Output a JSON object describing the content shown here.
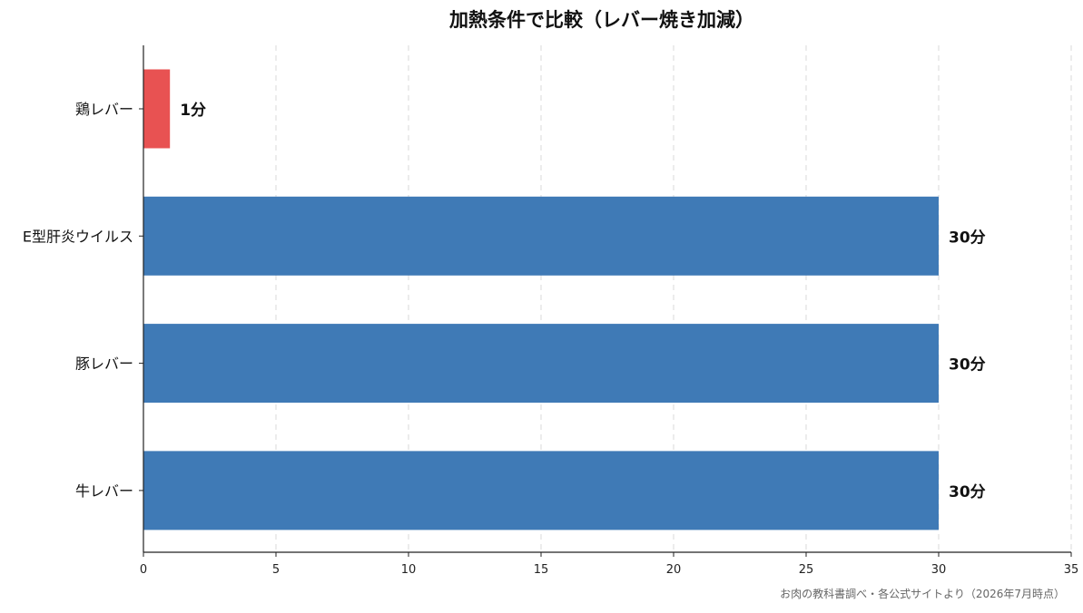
{
  "chart_data": {
    "type": "bar",
    "orientation": "horizontal",
    "title": "加熱条件で比較（レバー焼き加減）",
    "categories": [
      "鶏レバー",
      "E型肝炎ウイルス",
      "豚レバー",
      "牛レバー"
    ],
    "values": [
      1,
      30,
      30,
      30
    ],
    "value_labels": [
      "1分",
      "30分",
      "30分",
      "30分"
    ],
    "bar_colors": [
      "#e85252",
      "#3f7ab6",
      "#3f7ab6",
      "#3f7ab6"
    ],
    "xlim": [
      0,
      35
    ],
    "xticks": [
      0,
      5,
      10,
      15,
      20,
      25,
      30,
      35
    ],
    "xlabel": "",
    "ylabel": "",
    "grid": "x-dashed",
    "source_note": "お肉の教科書調べ・各公式サイトより（2026年7月時点）"
  }
}
